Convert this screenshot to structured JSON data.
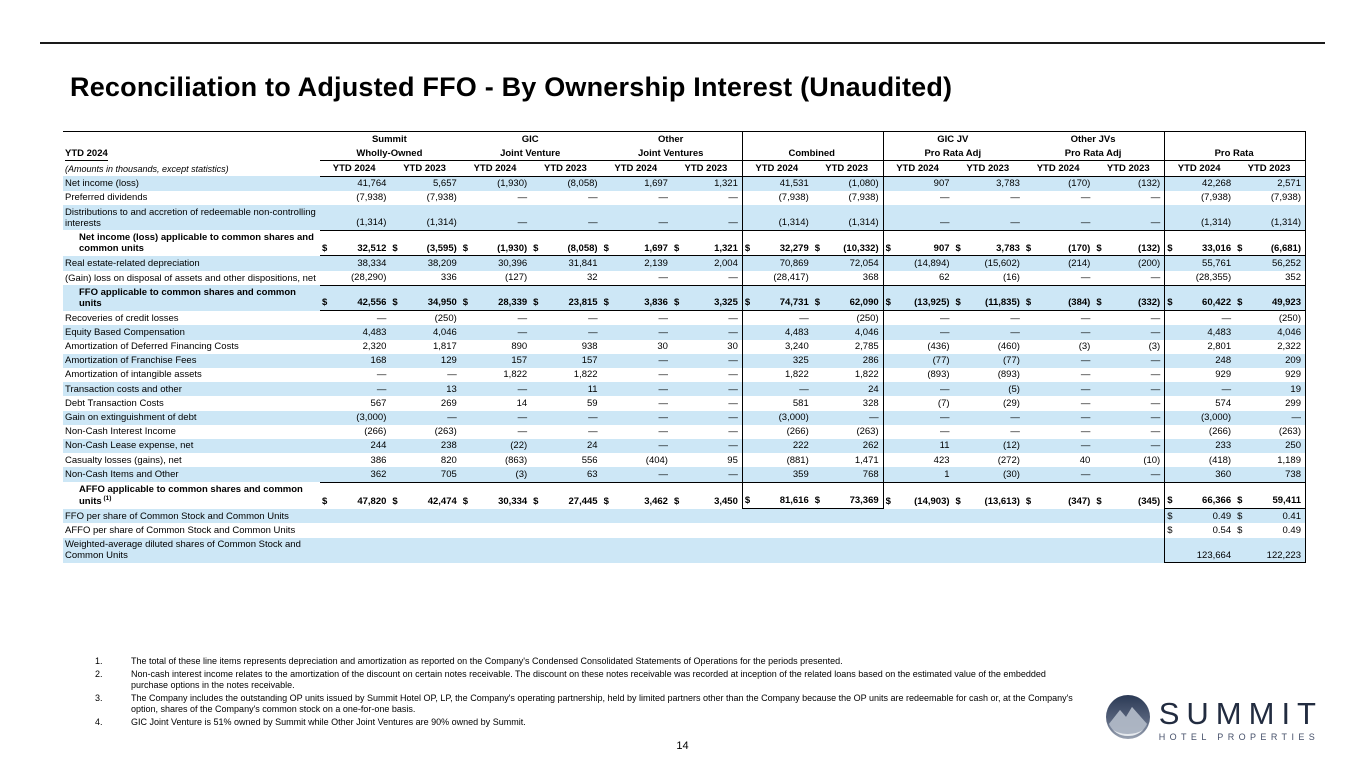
{
  "title": "Reconciliation to Adjusted FFO - By Ownership Interest (Unaudited)",
  "period_label": "YTD 2024",
  "amounts_note": "(Amounts in thousands, except statistics)",
  "currency_symbol": "$",
  "colors": {
    "stripe": "#cde7f6",
    "line": "#000000",
    "logo_navy": "#222c40"
  },
  "column_groups": [
    {
      "line1": "Summit",
      "line2": "Wholly-Owned",
      "boxed": false
    },
    {
      "line1": "GIC",
      "line2": "Joint Venture",
      "boxed": false
    },
    {
      "line1": "Other",
      "line2": "Joint Ventures",
      "boxed": false
    },
    {
      "line1": "",
      "line2": "Combined",
      "boxed": true
    },
    {
      "line1": "GIC JV",
      "line2": "Pro Rata Adj",
      "boxed": false
    },
    {
      "line1": "Other JVs",
      "line2": "Pro Rata Adj",
      "boxed": false
    },
    {
      "line1": "",
      "line2": "Pro Rata",
      "boxed": true
    }
  ],
  "year_headers": [
    "YTD 2024",
    "YTD 2023"
  ],
  "rows": [
    {
      "label": "Net income (loss)",
      "style": "normal",
      "dollar": "none",
      "underline": false,
      "values": [
        "41,764",
        "5,657",
        "(1,930)",
        "(8,058)",
        "1,697",
        "1,321",
        "41,531",
        "(1,080)",
        "907",
        "3,783",
        "(170)",
        "(132)",
        "42,268",
        "2,571"
      ]
    },
    {
      "label": "Preferred dividends",
      "style": "normal",
      "dollar": "none",
      "underline": false,
      "values": [
        "(7,938)",
        "(7,938)",
        "—",
        "—",
        "—",
        "—",
        "(7,938)",
        "(7,938)",
        "—",
        "—",
        "—",
        "—",
        "(7,938)",
        "(7,938)"
      ]
    },
    {
      "label": "Distributions to and accretion of redeemable non-controlling interests",
      "style": "normal",
      "dollar": "none",
      "underline": true,
      "values": [
        "(1,314)",
        "(1,314)",
        "—",
        "—",
        "—",
        "—",
        "(1,314)",
        "(1,314)",
        "—",
        "—",
        "—",
        "—",
        "(1,314)",
        "(1,314)"
      ]
    },
    {
      "label": "Net income (loss) applicable to common shares and common units",
      "style": "subtotal",
      "dollar": "all",
      "underline": true,
      "values": [
        "32,512",
        "(3,595)",
        "(1,930)",
        "(8,058)",
        "1,697",
        "1,321",
        "32,279",
        "(10,332)",
        "907",
        "3,783",
        "(170)",
        "(132)",
        "33,016",
        "(6,681)"
      ]
    },
    {
      "label": "Real estate-related depreciation",
      "style": "normal",
      "dollar": "none",
      "underline": false,
      "values": [
        "38,334",
        "38,209",
        "30,396",
        "31,841",
        "2,139",
        "2,004",
        "70,869",
        "72,054",
        "(14,894)",
        "(15,602)",
        "(214)",
        "(200)",
        "55,761",
        "56,252"
      ]
    },
    {
      "label": "(Gain) loss on disposal of assets and other dispositions, net",
      "style": "normal",
      "dollar": "none",
      "underline": true,
      "values": [
        "(28,290)",
        "336",
        "(127)",
        "32",
        "—",
        "—",
        "(28,417)",
        "368",
        "62",
        "(16)",
        "—",
        "—",
        "(28,355)",
        "352"
      ]
    },
    {
      "label": "FFO applicable to common shares and common units",
      "style": "subtotal",
      "dollar": "all",
      "underline": true,
      "values": [
        "42,556",
        "34,950",
        "28,339",
        "23,815",
        "3,836",
        "3,325",
        "74,731",
        "62,090",
        "(13,925)",
        "(11,835)",
        "(384)",
        "(332)",
        "60,422",
        "49,923"
      ]
    },
    {
      "label": "Recoveries of credit losses",
      "style": "normal",
      "dollar": "none",
      "underline": false,
      "values": [
        "—",
        "(250)",
        "—",
        "—",
        "—",
        "—",
        "—",
        "(250)",
        "—",
        "—",
        "—",
        "—",
        "—",
        "(250)"
      ]
    },
    {
      "label": "Equity Based Compensation",
      "style": "normal",
      "dollar": "none",
      "underline": false,
      "values": [
        "4,483",
        "4,046",
        "—",
        "—",
        "—",
        "—",
        "4,483",
        "4,046",
        "—",
        "—",
        "—",
        "—",
        "4,483",
        "4,046"
      ]
    },
    {
      "label": "Amortization of Deferred Financing Costs",
      "style": "normal",
      "dollar": "none",
      "underline": false,
      "values": [
        "2,320",
        "1,817",
        "890",
        "938",
        "30",
        "30",
        "3,240",
        "2,785",
        "(436)",
        "(460)",
        "(3)",
        "(3)",
        "2,801",
        "2,322"
      ]
    },
    {
      "label": "Amortization of Franchise Fees",
      "style": "normal",
      "dollar": "none",
      "underline": false,
      "values": [
        "168",
        "129",
        "157",
        "157",
        "—",
        "—",
        "325",
        "286",
        "(77)",
        "(77)",
        "—",
        "—",
        "248",
        "209"
      ]
    },
    {
      "label": "Amortization of intangible assets",
      "style": "normal",
      "dollar": "none",
      "underline": false,
      "values": [
        "—",
        "—",
        "1,822",
        "1,822",
        "—",
        "—",
        "1,822",
        "1,822",
        "(893)",
        "(893)",
        "—",
        "—",
        "929",
        "929"
      ]
    },
    {
      "label": "Transaction costs and other",
      "style": "normal",
      "dollar": "none",
      "underline": false,
      "values": [
        "—",
        "13",
        "—",
        "11",
        "—",
        "—",
        "—",
        "24",
        "—",
        "(5)",
        "—",
        "—",
        "—",
        "19"
      ]
    },
    {
      "label": "Debt Transaction Costs",
      "style": "normal",
      "dollar": "none",
      "underline": false,
      "values": [
        "567",
        "269",
        "14",
        "59",
        "—",
        "—",
        "581",
        "328",
        "(7)",
        "(29)",
        "—",
        "—",
        "574",
        "299"
      ]
    },
    {
      "label": "Gain on extinguishment of debt",
      "style": "normal",
      "dollar": "none",
      "underline": false,
      "values": [
        "(3,000)",
        "—",
        "—",
        "—",
        "—",
        "—",
        "(3,000)",
        "—",
        "—",
        "—",
        "—",
        "—",
        "(3,000)",
        "—"
      ]
    },
    {
      "label": "Non-Cash Interest Income",
      "style": "normal",
      "dollar": "none",
      "underline": false,
      "values": [
        "(266)",
        "(263)",
        "—",
        "—",
        "—",
        "—",
        "(266)",
        "(263)",
        "—",
        "—",
        "—",
        "—",
        "(266)",
        "(263)"
      ]
    },
    {
      "label": "Non-Cash Lease expense, net",
      "style": "normal",
      "dollar": "none",
      "underline": false,
      "values": [
        "244",
        "238",
        "(22)",
        "24",
        "—",
        "—",
        "222",
        "262",
        "11",
        "(12)",
        "—",
        "—",
        "233",
        "250"
      ]
    },
    {
      "label": "Casualty losses (gains), net",
      "style": "normal",
      "dollar": "none",
      "underline": false,
      "values": [
        "386",
        "820",
        "(863)",
        "556",
        "(404)",
        "95",
        "(881)",
        "1,471",
        "423",
        "(272)",
        "40",
        "(10)",
        "(418)",
        "1,189"
      ]
    },
    {
      "label": "Non-Cash Items and Other",
      "style": "normal",
      "dollar": "none",
      "underline": true,
      "values": [
        "362",
        "705",
        "(3)",
        "63",
        "—",
        "—",
        "359",
        "768",
        "1",
        "(30)",
        "—",
        "—",
        "360",
        "738"
      ]
    },
    {
      "label": "AFFO applicable to common shares and common units",
      "sup": "(1)",
      "style": "subtotal",
      "dollar": "all",
      "underline": false,
      "underline_prorata": true,
      "values": [
        "47,820",
        "42,474",
        "30,334",
        "27,445",
        "3,462",
        "3,450",
        "81,616",
        "73,369",
        "(14,903)",
        "(13,613)",
        "(347)",
        "(345)",
        "66,366",
        "59,411"
      ]
    },
    {
      "label": "FFO per share of Common Stock and Common Units",
      "style": "normal",
      "dollar": "prorata",
      "underline": false,
      "values": [
        "",
        "",
        "",
        "",
        "",
        "",
        "",
        "",
        "",
        "",
        "",
        "",
        "0.49",
        "0.41"
      ]
    },
    {
      "label": "AFFO per share of Common Stock and Common Units",
      "style": "normal",
      "dollar": "prorata",
      "underline": false,
      "values": [
        "",
        "",
        "",
        "",
        "",
        "",
        "",
        "",
        "",
        "",
        "",
        "",
        "0.54",
        "0.49"
      ]
    },
    {
      "label": "Weighted-average diluted shares of Common Stock and Common Units",
      "style": "normal",
      "dollar": "none",
      "underline": false,
      "values": [
        "",
        "",
        "",
        "",
        "",
        "",
        "",
        "",
        "",
        "",
        "",
        "",
        "123,664",
        "122,223"
      ]
    }
  ],
  "footnotes": [
    {
      "num": "1.",
      "text": "The total of these line items represents depreciation and amortization as reported on the Company's Condensed Consolidated Statements of Operations for the periods presented."
    },
    {
      "num": "2.",
      "text": "Non-cash interest income relates to the amortization of the discount on certain notes receivable. The discount on these notes receivable was recorded at inception of the related loans based on the estimated value of the embedded purchase options in the notes receivable."
    },
    {
      "num": "3.",
      "text": "The Company includes the outstanding OP units issued by Summit Hotel OP, LP, the Company's operating partnership, held by limited partners other than the Company because the OP units are redeemable for cash or, at the Company's option, shares of the Company's common stock on a one-for-one basis."
    },
    {
      "num": "4.",
      "text": "GIC Joint Venture is 51% owned by Summit while Other Joint Ventures are 90% owned by Summit."
    }
  ],
  "page_number": "14",
  "logo": {
    "name": "SUMMIT",
    "subtitle": "HOTEL PROPERTIES",
    "icon": "mountain-circle"
  }
}
